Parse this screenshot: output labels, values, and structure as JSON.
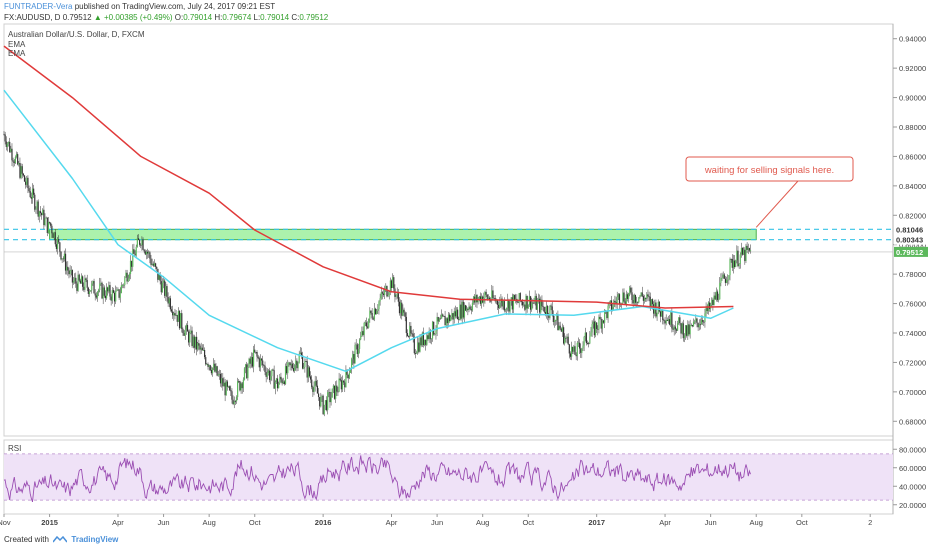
{
  "header": {
    "author": "FUNTRADER-Vera",
    "published": "published on TradingView.com, July 24, 2017 09:21 EST",
    "symbol": "FX:AUDUSD, D",
    "last": "0.79512",
    "change": "+0.00385 (+0.49%)",
    "o_label": "O:",
    "o": "0.79014",
    "h_label": "H:",
    "h": "0.79674",
    "l_label": "L:",
    "l": "0.79014",
    "c_label": "C:",
    "c": "0.79512"
  },
  "main_pane": {
    "instrument": "Australian Dollar/U.S. Dollar, D, FXCM",
    "ema1": "EMA",
    "ema2": "EMA"
  },
  "annotation": {
    "text": "waiting for selling signals here."
  },
  "price_badges": {
    "zone_top": "0.81046",
    "zone_bottom": "0.80343",
    "last": "0.79512"
  },
  "rsi_pane": {
    "title": "RSI",
    "ticks": [
      "80.0000",
      "60.0000",
      "40.0000",
      "20.0000"
    ]
  },
  "footer": {
    "created_with": "Created with",
    "brand": "TradingView"
  },
  "colors": {
    "ema_slow": "#e03a3a",
    "ema_fast": "#55d9ee",
    "zone": "#90ee90",
    "rsi": "#9b4fb3",
    "accent_blue": "#4a90d9",
    "candle_dark": "#333333",
    "candle_up": "#5cb85c"
  },
  "chart_data": {
    "type": "candlestick",
    "title": "Australian Dollar/U.S. Dollar, D, FXCM",
    "x_tick_labels": [
      "Nov",
      "2015",
      "Apr",
      "Jun",
      "Aug",
      "Oct",
      "2016",
      "Apr",
      "Jun",
      "Aug",
      "Oct",
      "2017",
      "Apr",
      "Jun",
      "Aug",
      "Oct",
      "2"
    ],
    "y_tick_labels": [
      "0.94000",
      "0.92000",
      "0.90000",
      "0.88000",
      "0.86000",
      "0.84000",
      "0.82000",
      "0.80000",
      "0.78000",
      "0.76000",
      "0.74000",
      "0.72000",
      "0.70000",
      "0.68000"
    ],
    "ylim": [
      0.67,
      0.95
    ],
    "close_path": [
      {
        "x": "Nov 2014",
        "y": 0.875
      },
      {
        "x": "Dec 2014",
        "y": 0.84
      },
      {
        "x": "Jan 2015",
        "y": 0.81
      },
      {
        "x": "Jan 2015",
        "y": 0.815
      },
      {
        "x": "Feb 2015",
        "y": 0.775
      },
      {
        "x": "Mar 2015",
        "y": 0.77
      },
      {
        "x": "Apr 2015",
        "y": 0.765
      },
      {
        "x": "May 2015",
        "y": 0.805
      },
      {
        "x": "Jun 2015",
        "y": 0.77
      },
      {
        "x": "Jul 2015",
        "y": 0.74
      },
      {
        "x": "Aug 2015",
        "y": 0.72
      },
      {
        "x": "Sep 2015",
        "y": 0.695
      },
      {
        "x": "Oct 2015",
        "y": 0.725
      },
      {
        "x": "Nov 2015",
        "y": 0.705
      },
      {
        "x": "Dec 2015",
        "y": 0.725
      },
      {
        "x": "Jan 2016",
        "y": 0.69
      },
      {
        "x": "Feb 2016",
        "y": 0.71
      },
      {
        "x": "Mar 2016",
        "y": 0.75
      },
      {
        "x": "Apr 2016",
        "y": 0.775
      },
      {
        "x": "May 2016",
        "y": 0.73
      },
      {
        "x": "Jun 2016",
        "y": 0.745
      },
      {
        "x": "Jul 2016",
        "y": 0.755
      },
      {
        "x": "Aug 2016",
        "y": 0.765
      },
      {
        "x": "Sep 2016",
        "y": 0.76
      },
      {
        "x": "Oct 2016",
        "y": 0.762
      },
      {
        "x": "Nov 2016",
        "y": 0.755
      },
      {
        "x": "Dec 2016",
        "y": 0.725
      },
      {
        "x": "Jan 2017",
        "y": 0.745
      },
      {
        "x": "Feb 2017",
        "y": 0.765
      },
      {
        "x": "Mar 2017",
        "y": 0.765
      },
      {
        "x": "Apr 2017",
        "y": 0.752
      },
      {
        "x": "May 2017",
        "y": 0.74
      },
      {
        "x": "Jun 2017",
        "y": 0.757
      },
      {
        "x": "Jul 2017",
        "y": 0.79
      },
      {
        "x": "Jul 24 2017",
        "y": 0.795
      }
    ],
    "ema_slow": [
      {
        "x": "Nov 2014",
        "y": 0.935
      },
      {
        "x": "Feb 2015",
        "y": 0.9
      },
      {
        "x": "May 2015",
        "y": 0.86
      },
      {
        "x": "Aug 2015",
        "y": 0.835
      },
      {
        "x": "Oct 2015",
        "y": 0.81
      },
      {
        "x": "Jan 2016",
        "y": 0.785
      },
      {
        "x": "Apr 2016",
        "y": 0.768
      },
      {
        "x": "Jul 2016",
        "y": 0.763
      },
      {
        "x": "Oct 2016",
        "y": 0.762
      },
      {
        "x": "Jan 2017",
        "y": 0.761
      },
      {
        "x": "Apr 2017",
        "y": 0.757
      },
      {
        "x": "Jul 2017",
        "y": 0.758
      }
    ],
    "ema_fast": [
      {
        "x": "Nov 2014",
        "y": 0.905
      },
      {
        "x": "Feb 2015",
        "y": 0.845
      },
      {
        "x": "Apr 2015",
        "y": 0.8
      },
      {
        "x": "Jun 2015",
        "y": 0.778
      },
      {
        "x": "Aug 2015",
        "y": 0.752
      },
      {
        "x": "Nov 2015",
        "y": 0.73
      },
      {
        "x": "Feb 2016",
        "y": 0.714
      },
      {
        "x": "Apr 2016",
        "y": 0.73
      },
      {
        "x": "Jun 2016",
        "y": 0.743
      },
      {
        "x": "Sep 2016",
        "y": 0.753
      },
      {
        "x": "Dec 2016",
        "y": 0.752
      },
      {
        "x": "Mar 2017",
        "y": 0.758
      },
      {
        "x": "Jun 2017",
        "y": 0.75
      },
      {
        "x": "Jul 2017",
        "y": 0.757
      }
    ],
    "zone": {
      "low": 0.80343,
      "high": 0.81046,
      "start": "Jan 2015",
      "end": "Aug 2017"
    },
    "rsi": {
      "ylim": [
        10,
        90
      ],
      "band": [
        25,
        75
      ],
      "ticks": [
        80,
        60,
        40,
        20
      ]
    }
  }
}
